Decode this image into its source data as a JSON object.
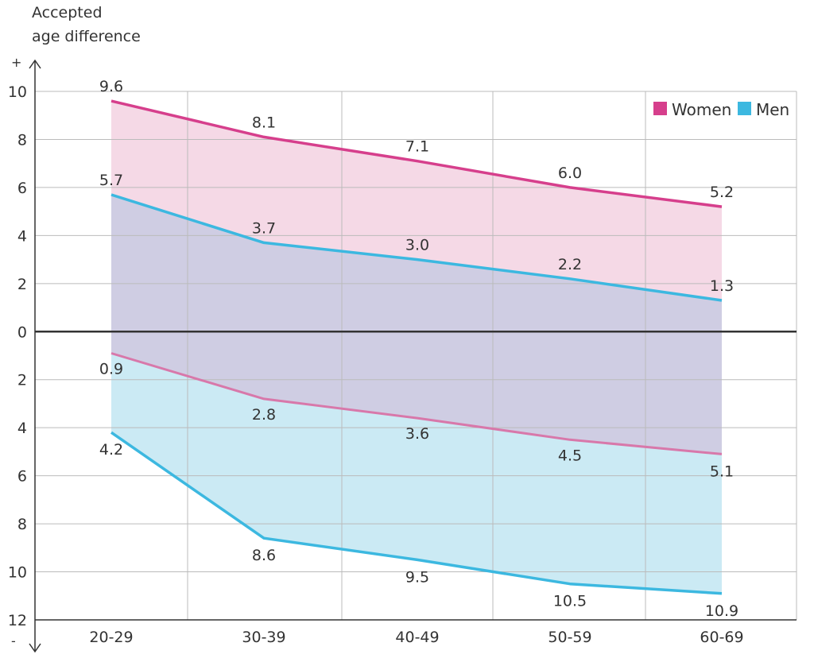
{
  "chart_data": {
    "type": "area",
    "ylabel_lines": [
      "Accepted",
      "age difference"
    ],
    "axis_signs": {
      "top": "+",
      "bottom": "-"
    },
    "categories": [
      "20-29",
      "30-39",
      "40-49",
      "50-59",
      "60-69"
    ],
    "ylim": [
      -12,
      10
    ],
    "y_ticks": [
      10,
      8,
      6,
      4,
      2,
      0,
      -2,
      -4,
      -6,
      -8,
      -10,
      -12
    ],
    "y_tick_labels": [
      "10",
      "8",
      "6",
      "4",
      "2",
      "0",
      "2",
      "4",
      "6",
      "8",
      "10",
      "12"
    ],
    "grid": true,
    "legend_position": "top-right",
    "series": [
      {
        "name": "Women",
        "color": "#d63f8c",
        "fill": "#f5d9e6",
        "upper": [
          9.6,
          8.1,
          7.1,
          6.0,
          5.2
        ],
        "lower": [
          -0.9,
          -2.8,
          -3.6,
          -4.5,
          -5.1
        ],
        "upper_labels": [
          "9.6",
          "8.1",
          "7.1",
          "6.0",
          "5.2"
        ],
        "lower_labels": [
          "0.9",
          "2.8",
          "3.6",
          "4.5",
          "5.1"
        ]
      },
      {
        "name": "Men",
        "color": "#3cb8e0",
        "fill": "#cbeaf4",
        "upper": [
          5.7,
          3.7,
          3.0,
          2.2,
          1.3
        ],
        "lower": [
          -4.2,
          -8.6,
          -9.5,
          -10.5,
          -10.9
        ],
        "upper_labels": [
          "5.7",
          "3.7",
          "3.0",
          "2.2",
          "1.3"
        ],
        "lower_labels": [
          "4.2",
          "8.6",
          "9.5",
          "10.5",
          "10.9"
        ]
      }
    ],
    "overlap_fill": "#cfcde3"
  }
}
